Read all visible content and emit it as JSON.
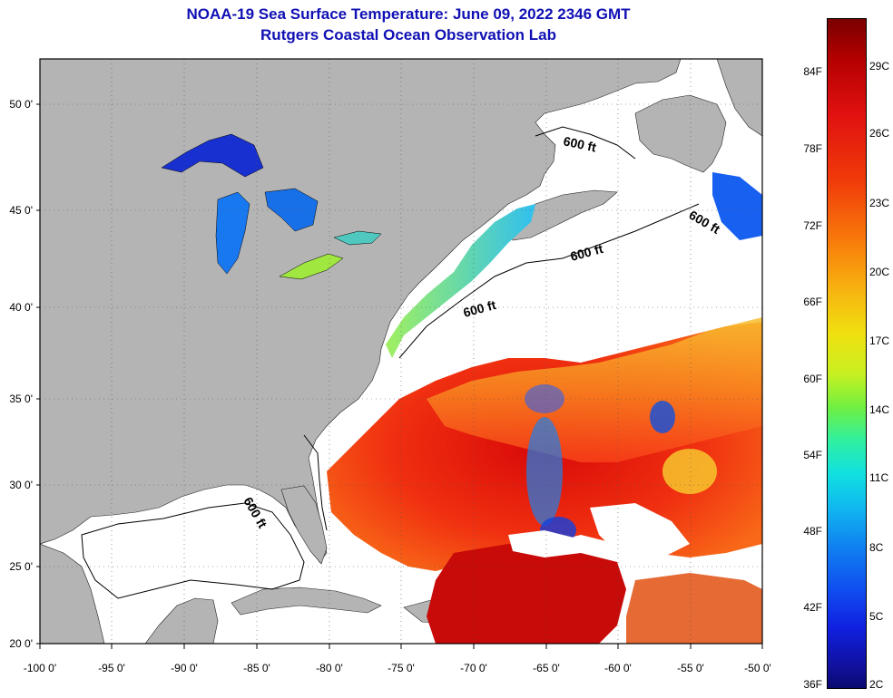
{
  "header": {
    "title_line_1": "NOAA-19 Sea Surface Temperature:  June 09, 2022 2346 GMT",
    "title_line_2": "Rutgers Coastal Ocean Observation Lab"
  },
  "map": {
    "lat_labels": [
      "50 0'",
      "45 0'",
      "40 0'",
      "35 0'",
      "30 0'",
      "25 0'",
      "20 0'"
    ],
    "lon_labels": [
      "-100 0'",
      "-95 0'",
      "-90 0'",
      "-85 0'",
      "-80 0'",
      "-75 0'",
      "-70 0'",
      "-65 0'",
      "-60 0'",
      "-55 0'",
      "-50 0'"
    ],
    "contour_labels": [
      "600 ft",
      "600 ft",
      "600 ft",
      "600 ft",
      "600 ft"
    ],
    "colors": {
      "land": "#b4b4b4",
      "no_data": "#ffffff",
      "warm": "#e82010",
      "mid": "#f89020",
      "cool": "#20a0f0"
    }
  },
  "colorbar": {
    "fahrenheit_labels": [
      "84F",
      "78F",
      "72F",
      "66F",
      "60F",
      "54F",
      "48F",
      "42F",
      "36F"
    ],
    "celsius_labels": [
      "29C",
      "26C",
      "23C",
      "20C",
      "17C",
      "14C",
      "11C",
      "8C",
      "5C",
      "2C"
    ]
  }
}
